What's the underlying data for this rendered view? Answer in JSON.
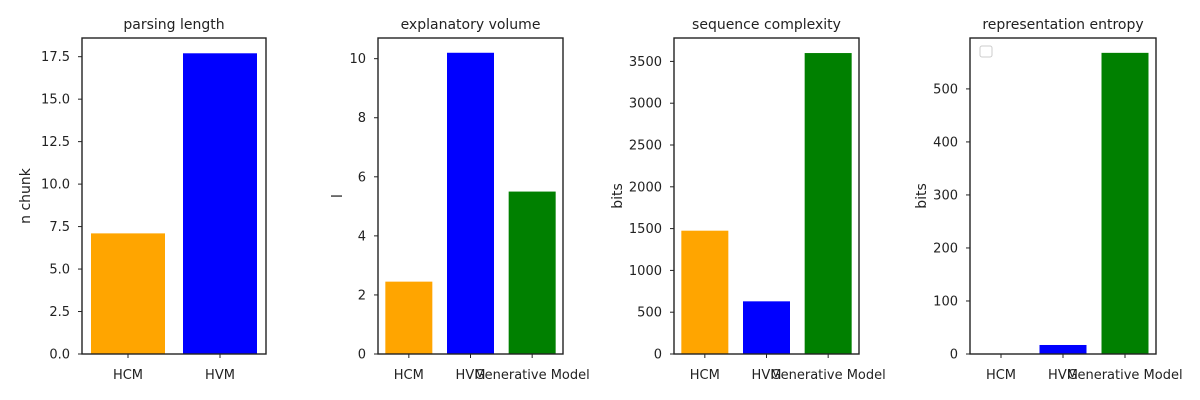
{
  "colors": {
    "HCM": "#FFA500",
    "HVM": "#0000FF",
    "Generative Model": "#008000"
  },
  "chart_data": [
    {
      "type": "bar",
      "title": "parsing length",
      "ylabel": "n chunk",
      "xlabel": "",
      "categories": [
        "HCM",
        "HVM"
      ],
      "values": [
        7.1,
        17.7
      ],
      "ylim": [
        0,
        18.6
      ],
      "yticks": [
        "0.0",
        "2.5",
        "5.0",
        "7.5",
        "10.0",
        "12.5",
        "15.0",
        "17.5"
      ],
      "grid": false
    },
    {
      "type": "bar",
      "title": "explanatory volume",
      "ylabel": "l",
      "xlabel": "",
      "categories": [
        "HCM",
        "HVM",
        "Generative Model"
      ],
      "values": [
        2.45,
        10.2,
        5.5
      ],
      "ylim": [
        0,
        10.7
      ],
      "yticks": [
        "0",
        "2",
        "4",
        "6",
        "8",
        "10"
      ],
      "grid": false
    },
    {
      "type": "bar",
      "title": "sequence complexity",
      "ylabel": "bits",
      "xlabel": "",
      "categories": [
        "HCM",
        "HVM",
        "Generative Model"
      ],
      "values": [
        1475,
        630,
        3600
      ],
      "ylim": [
        0,
        3780
      ],
      "yticks": [
        "0",
        "500",
        "1000",
        "1500",
        "2000",
        "2500",
        "3000",
        "3500"
      ],
      "grid": false
    },
    {
      "type": "bar",
      "title": "representation entropy",
      "ylabel": "bits",
      "xlabel": "",
      "categories": [
        "HCM",
        "HVM",
        "Generative Model"
      ],
      "values": [
        0,
        17,
        568
      ],
      "ylim": [
        0,
        596
      ],
      "yticks": [
        "0",
        "100",
        "200",
        "300",
        "400",
        "500"
      ],
      "grid": false,
      "legend": "top-left (empty)"
    }
  ]
}
